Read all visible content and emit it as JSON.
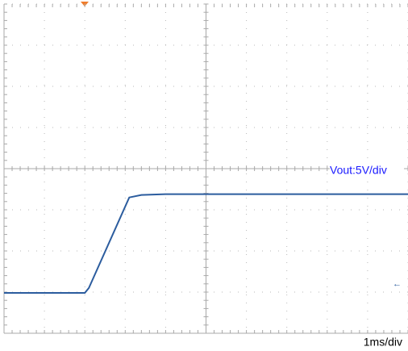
{
  "chart_data": {
    "type": "line",
    "annotations": [
      "Vout:5V/div",
      "1ms/div"
    ],
    "xlim": [
      0,
      10
    ],
    "xticks": [
      0,
      1,
      2,
      3,
      4,
      5,
      6,
      7,
      8,
      9,
      10
    ],
    "ylim": [
      0,
      8
    ],
    "yticks": [
      0,
      1,
      2,
      3,
      4,
      5,
      6,
      7,
      8
    ],
    "grid": true,
    "x": [
      0,
      2,
      2.1,
      3.1,
      3.4,
      4,
      10
    ],
    "series": [
      {
        "name": "Vout",
        "color": "#2b5c9e",
        "values": [
          0.98,
          0.98,
          1.1,
          3.3,
          3.36,
          3.38,
          3.38
        ]
      }
    ]
  }
}
